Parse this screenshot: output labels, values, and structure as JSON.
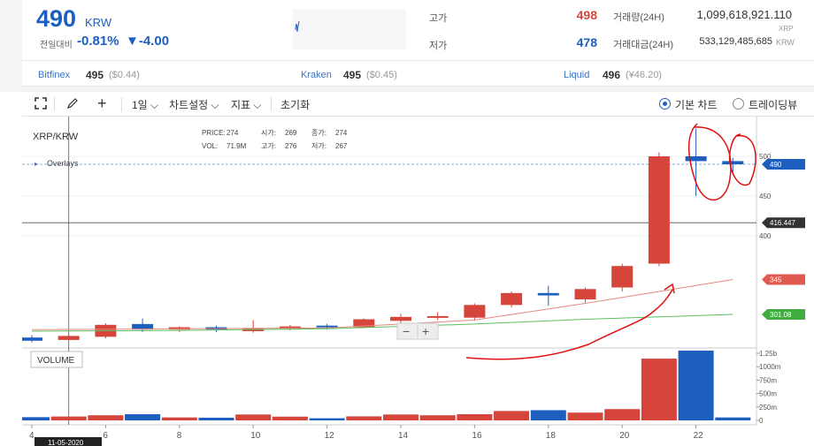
{
  "ticker": {
    "price": "490",
    "unit": "KRW",
    "change_label": "전일대비",
    "change_pct": "-0.81%",
    "change_abs": "▼-4.00",
    "high_label": "고가",
    "high": "498",
    "low_label": "저가",
    "low": "478",
    "volume_label": "거래량(24H)",
    "volume": "1,099,618,921.110",
    "volume_unit": "XRP",
    "amount_label": "거래대금(24H)",
    "amount": "533,129,485,685",
    "amount_unit": "KRW",
    "colors": {
      "up": "#d6453b",
      "down": "#1d5fbf"
    }
  },
  "exchanges": [
    {
      "name": "Bitfinex",
      "price": "495",
      "sub": "($0.44)"
    },
    {
      "name": "Kraken",
      "price": "495",
      "sub": "($0.45)"
    },
    {
      "name": "Liquid",
      "price": "496",
      "sub": "(¥46.20)"
    }
  ],
  "toolbar": {
    "fullscreen_icon": "fullscreen-icon",
    "draw_icon": "pencil-icon",
    "crosshair_icon": "crosshair-icon",
    "interval": "1일",
    "chart_settings": "차트설정",
    "indicators": "지표",
    "reset": "초기화",
    "basic_chart": "기본 차트",
    "trading_view": "트레이딩뷰",
    "selected_mode": "기본 차트"
  },
  "chart": {
    "symbol": "XRP/KRW",
    "overlays_label": "Overlays",
    "info": {
      "price_label": "PRICE:",
      "price": "274",
      "open_label": "시가:",
      "open": "269",
      "close_label": "종가:",
      "close": "274",
      "vol_label": "VOL:",
      "vol": "71.9M",
      "high_label": "고가:",
      "high": "276",
      "low_label": "저가:",
      "low": "267"
    },
    "volume_label": "VOLUME",
    "crosshair_date": "11-05-2020",
    "crosshair_price": "416.447",
    "last_price_tag": "490",
    "ma_red_tag": "345",
    "ma_green_tag": "301.08",
    "zoom_minus": "−",
    "zoom_plus": "+"
  },
  "chart_data": {
    "type": "candlestick",
    "x_ticks": [
      "4",
      "6",
      "8",
      "10",
      "12",
      "14",
      "16",
      "18",
      "20",
      "22"
    ],
    "price_ticks": [
      "500",
      "450",
      "400"
    ],
    "volume_ticks": [
      "1.25b",
      "1000m",
      "750m",
      "500m",
      "250m",
      "0"
    ],
    "candles": [
      {
        "day": 4,
        "o": 272,
        "h": 275,
        "l": 266,
        "c": 268,
        "v": 60
      },
      {
        "day": 5,
        "o": 269,
        "h": 276,
        "l": 267,
        "c": 274,
        "v": 72
      },
      {
        "day": 6,
        "o": 273,
        "h": 290,
        "l": 271,
        "c": 288,
        "v": 95
      },
      {
        "day": 7,
        "o": 289,
        "h": 296,
        "l": 279,
        "c": 282,
        "v": 115
      },
      {
        "day": 8,
        "o": 282,
        "h": 286,
        "l": 279,
        "c": 285,
        "v": 55
      },
      {
        "day": 9,
        "o": 285,
        "h": 287,
        "l": 279,
        "c": 282,
        "v": 50
      },
      {
        "day": 10,
        "o": 280,
        "h": 294,
        "l": 278,
        "c": 284,
        "v": 110
      },
      {
        "day": 11,
        "o": 283,
        "h": 288,
        "l": 281,
        "c": 286,
        "v": 70
      },
      {
        "day": 12,
        "o": 287,
        "h": 289,
        "l": 282,
        "c": 285,
        "v": 40
      },
      {
        "day": 13,
        "o": 285,
        "h": 296,
        "l": 284,
        "c": 295,
        "v": 75
      },
      {
        "day": 14,
        "o": 293,
        "h": 302,
        "l": 288,
        "c": 298,
        "v": 110
      },
      {
        "day": 15,
        "o": 297,
        "h": 304,
        "l": 294,
        "c": 299,
        "v": 95
      },
      {
        "day": 16,
        "o": 297,
        "h": 315,
        "l": 293,
        "c": 313,
        "v": 115
      },
      {
        "day": 17,
        "o": 313,
        "h": 330,
        "l": 310,
        "c": 328,
        "v": 175
      },
      {
        "day": 18,
        "o": 328,
        "h": 337,
        "l": 312,
        "c": 325,
        "v": 190
      },
      {
        "day": 19,
        "o": 320,
        "h": 335,
        "l": 316,
        "c": 333,
        "v": 145
      },
      {
        "day": 20,
        "o": 335,
        "h": 365,
        "l": 330,
        "c": 362,
        "v": 210
      },
      {
        "day": 21,
        "o": 365,
        "h": 505,
        "l": 362,
        "c": 500,
        "v": 1150
      },
      {
        "day": 22,
        "o": 500,
        "h": 535,
        "l": 450,
        "c": 494,
        "v": 1300
      },
      {
        "day": 23,
        "o": 494,
        "h": 498,
        "l": 478,
        "c": 490,
        "v": 55
      }
    ],
    "ma_red": [
      [
        4,
        282
      ],
      [
        8,
        283
      ],
      [
        12,
        284
      ],
      [
        16,
        294
      ],
      [
        19,
        315
      ],
      [
        21,
        330
      ],
      [
        23,
        345
      ]
    ],
    "ma_green": [
      [
        4,
        280
      ],
      [
        8,
        281
      ],
      [
        12,
        283
      ],
      [
        16,
        289
      ],
      [
        19,
        295
      ],
      [
        21,
        298
      ],
      [
        23,
        301.08
      ]
    ],
    "last_price": 490,
    "crosshair": {
      "day": 5,
      "price": 416.447
    }
  }
}
